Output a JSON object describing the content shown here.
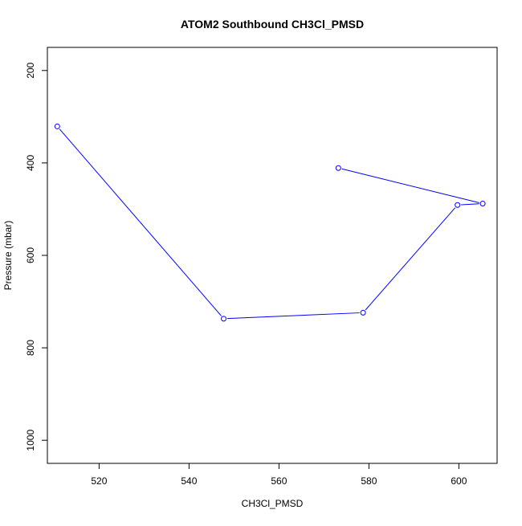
{
  "chart_data": {
    "type": "line",
    "title": "ATOM2 Southbound CH3Cl_PMSD",
    "xlabel": "CH3Cl_PMSD",
    "ylabel": "Pressure (mbar)",
    "xlim": [
      508.5,
      608.5
    ],
    "ylim": [
      1050,
      150
    ],
    "y_reversed": true,
    "x_ticks": [
      520,
      540,
      560,
      580,
      600
    ],
    "y_ticks": [
      200,
      400,
      600,
      800,
      1000
    ],
    "series": [
      {
        "color": "#0000ff",
        "marker": "open-circle",
        "x": [
          510.7,
          547.7,
          578.7,
          599.7,
          605.3,
          573.2
        ],
        "y": [
          321,
          737,
          724,
          491,
          488,
          411
        ]
      }
    ],
    "grid": false,
    "legend": "none"
  }
}
